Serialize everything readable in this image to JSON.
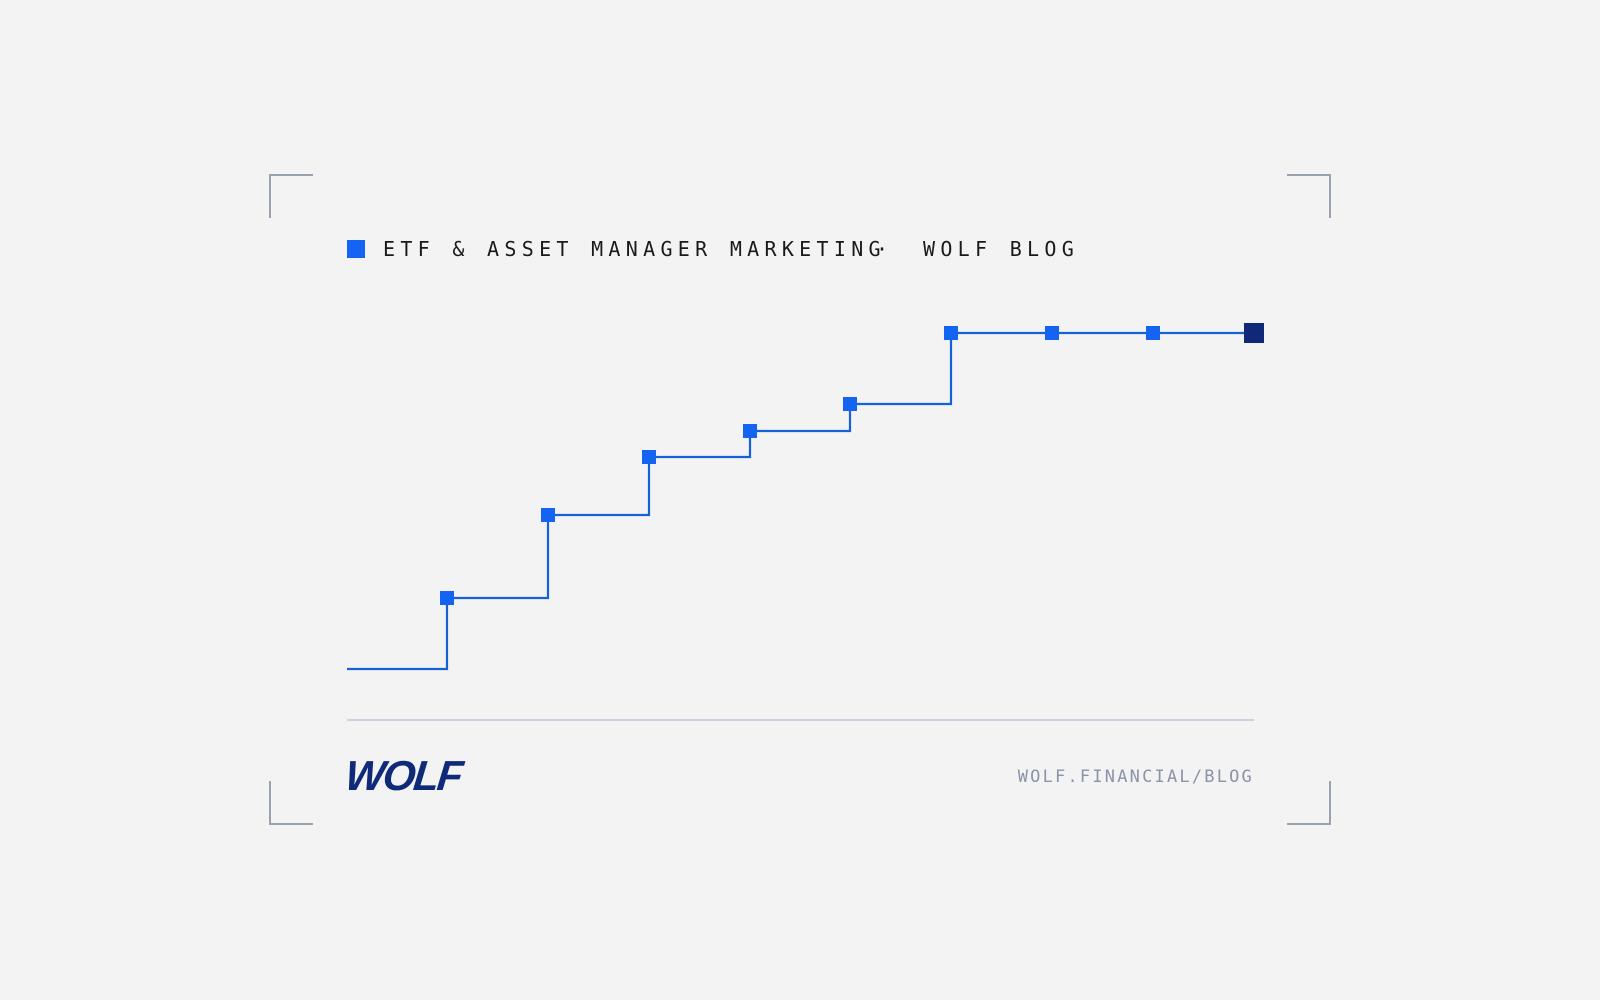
{
  "header": {
    "category": "ETF & ASSET MANAGER MARKETING",
    "separator": "·",
    "source": "WOLF BLOG"
  },
  "footer": {
    "logo": "WOLF",
    "url": "WOLF.FINANCIAL/BLOG"
  }
}
